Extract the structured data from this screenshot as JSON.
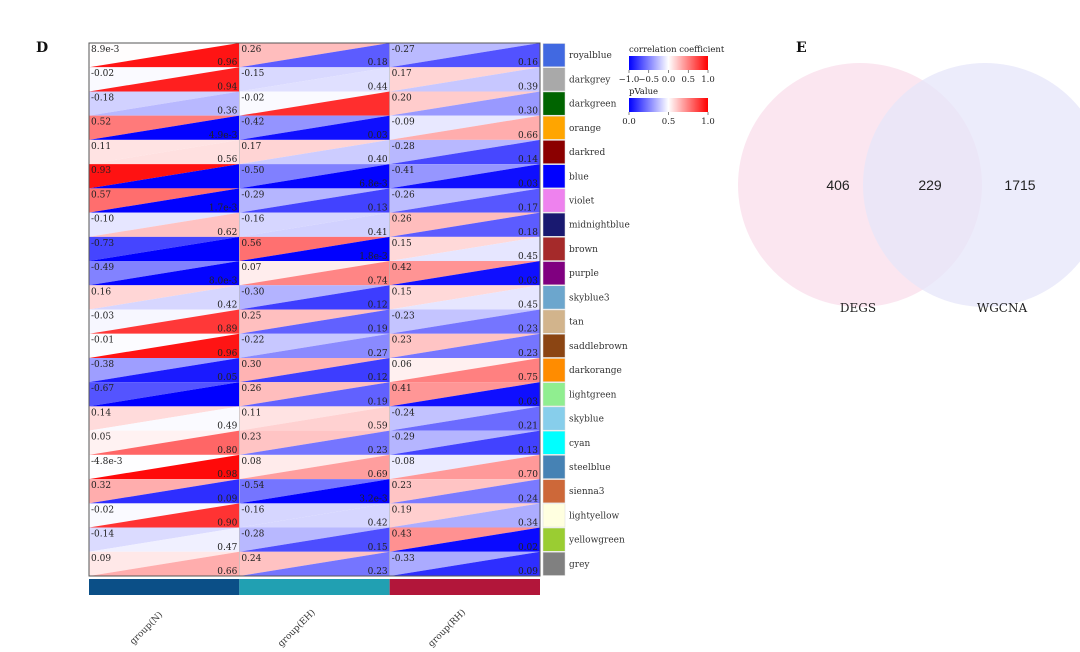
{
  "panel_d_label": "D",
  "panel_e_label": "E",
  "legend": {
    "coef_title": "correlation coefficient",
    "coef_ticks": [
      "−1.0",
      "−0.5",
      "0.0",
      "0.5",
      "1.0"
    ],
    "p_title": "pValue",
    "p_ticks": [
      "0.0",
      "0.5",
      "1.0"
    ]
  },
  "chart_data": [
    {
      "type": "heatmap",
      "title": "",
      "groups": [
        {
          "label": "group(N)",
          "color": "#0b4f87"
        },
        {
          "label": "group(EH)",
          "color": "#21a0b2"
        },
        {
          "label": "group(RH)",
          "color": "#b2163a"
        }
      ],
      "modules": [
        {
          "name": "royalblue",
          "color": "#4169e1"
        },
        {
          "name": "darkgrey",
          "color": "#a9a9a9"
        },
        {
          "name": "darkgreen",
          "color": "#006400"
        },
        {
          "name": "orange",
          "color": "#ffa500"
        },
        {
          "name": "darkred",
          "color": "#8b0000"
        },
        {
          "name": "blue",
          "color": "#0000ff"
        },
        {
          "name": "violet",
          "color": "#ee82ee"
        },
        {
          "name": "midnightblue",
          "color": "#191970"
        },
        {
          "name": "brown",
          "color": "#a52a2a"
        },
        {
          "name": "purple",
          "color": "#800080"
        },
        {
          "name": "skyblue3",
          "color": "#6ca6cd"
        },
        {
          "name": "tan",
          "color": "#d2b48c"
        },
        {
          "name": "saddlebrown",
          "color": "#8b4513"
        },
        {
          "name": "darkorange",
          "color": "#ff8c00"
        },
        {
          "name": "lightgreen",
          "color": "#90ee90"
        },
        {
          "name": "skyblue",
          "color": "#87ceeb"
        },
        {
          "name": "cyan",
          "color": "#00ffff"
        },
        {
          "name": "steelblue",
          "color": "#4682b4"
        },
        {
          "name": "sienna3",
          "color": "#cd6839"
        },
        {
          "name": "lightyellow",
          "color": "#ffffe0"
        },
        {
          "name": "yellowgreen",
          "color": "#9acd32"
        },
        {
          "name": "grey",
          "color": "#808080"
        }
      ],
      "cor_labels": [
        [
          "8.9e-3",
          "0.26",
          "-0.27"
        ],
        [
          "-0.02",
          "-0.15",
          "0.17"
        ],
        [
          "-0.18",
          "-0.02",
          "0.20"
        ],
        [
          "0.52",
          "-0.42",
          "-0.09"
        ],
        [
          "0.11",
          "0.17",
          "-0.28"
        ],
        [
          "0.93",
          "-0.50",
          "-0.41"
        ],
        [
          "0.57",
          "-0.29",
          "-0.26"
        ],
        [
          "-0.10",
          "-0.16",
          "0.26"
        ],
        [
          "-0.73",
          "0.56",
          "0.15"
        ],
        [
          "-0.49",
          "0.07",
          "0.42"
        ],
        [
          "0.16",
          "-0.30",
          "0.15"
        ],
        [
          "-0.03",
          "0.25",
          "-0.23"
        ],
        [
          "-0.01",
          "-0.22",
          "0.23"
        ],
        [
          "-0.38",
          "0.30",
          "0.06"
        ],
        [
          "-0.67",
          "0.26",
          "0.41"
        ],
        [
          "0.14",
          "0.11",
          "-0.24"
        ],
        [
          "0.05",
          "0.23",
          "-0.29"
        ],
        [
          "-4.8e-3",
          "0.08",
          "-0.08"
        ],
        [
          "0.32",
          "-0.54",
          "0.23"
        ],
        [
          "-0.02",
          "-0.16",
          "0.19"
        ],
        [
          "-0.14",
          "-0.28",
          "0.43"
        ],
        [
          "0.09",
          "0.24",
          "-0.33"
        ]
      ],
      "p_labels": [
        [
          "0.96",
          "0.18",
          "0.16"
        ],
        [
          "0.94",
          "0.44",
          "0.39"
        ],
        [
          "0.36",
          "",
          "0.30"
        ],
        [
          "4.9e-3",
          "0.03",
          "0.66"
        ],
        [
          "0.56",
          "0.40",
          "0.14"
        ],
        [
          "",
          "6.8e-3",
          "0.03"
        ],
        [
          "1.7e-3",
          "0.13",
          "0.17"
        ],
        [
          "0.62",
          "0.41",
          "0.18"
        ],
        [
          "",
          "1.8e-3",
          "0.45"
        ],
        [
          "8.0e-3",
          "0.74",
          "0.03"
        ],
        [
          "0.42",
          "0.12",
          "0.45"
        ],
        [
          "0.89",
          "0.19",
          "0.23"
        ],
        [
          "0.96",
          "0.27",
          "0.23"
        ],
        [
          "0.05",
          "0.12",
          "0.75"
        ],
        [
          "",
          "0.19",
          "0.03"
        ],
        [
          "0.49",
          "0.59",
          "0.21"
        ],
        [
          "0.80",
          "0.23",
          "0.13"
        ],
        [
          "0.98",
          "0.69",
          "0.70"
        ],
        [
          "0.09",
          "3.2e-3",
          "0.24"
        ],
        [
          "0.90",
          "0.42",
          "0.34"
        ],
        [
          "0.47",
          "0.15",
          "0.02"
        ],
        [
          "0.66",
          "0.23",
          "0.09"
        ]
      ],
      "cor_values": [
        [
          0.0089,
          0.26,
          -0.27
        ],
        [
          -0.02,
          -0.15,
          0.17
        ],
        [
          -0.18,
          -0.02,
          0.2
        ],
        [
          0.52,
          -0.42,
          -0.09
        ],
        [
          0.11,
          0.17,
          -0.28
        ],
        [
          0.93,
          -0.5,
          -0.41
        ],
        [
          0.57,
          -0.29,
          -0.26
        ],
        [
          -0.1,
          -0.16,
          0.26
        ],
        [
          -0.73,
          0.56,
          0.15
        ],
        [
          -0.49,
          0.07,
          0.42
        ],
        [
          0.16,
          -0.3,
          0.15
        ],
        [
          -0.03,
          0.25,
          -0.23
        ],
        [
          -0.01,
          -0.22,
          0.23
        ],
        [
          -0.38,
          0.3,
          0.06
        ],
        [
          -0.67,
          0.26,
          0.41
        ],
        [
          0.14,
          0.11,
          -0.24
        ],
        [
          0.05,
          0.23,
          -0.29
        ],
        [
          -0.0048,
          0.08,
          -0.08
        ],
        [
          0.32,
          -0.54,
          0.23
        ],
        [
          -0.02,
          -0.16,
          0.19
        ],
        [
          -0.14,
          -0.28,
          0.43
        ],
        [
          0.09,
          0.24,
          -0.33
        ]
      ],
      "p_values": [
        [
          0.96,
          0.18,
          0.16
        ],
        [
          0.94,
          0.44,
          0.39
        ],
        [
          0.36,
          0.91,
          0.3
        ],
        [
          0.0049,
          0.03,
          0.66
        ],
        [
          0.56,
          0.4,
          0.14
        ],
        [
          1e-05,
          0.0068,
          0.03
        ],
        [
          0.0017,
          0.13,
          0.17
        ],
        [
          0.62,
          0.41,
          0.18
        ],
        [
          0.0001,
          0.0018,
          0.45
        ],
        [
          0.008,
          0.74,
          0.03
        ],
        [
          0.42,
          0.12,
          0.45
        ],
        [
          0.89,
          0.19,
          0.23
        ],
        [
          0.96,
          0.27,
          0.23
        ],
        [
          0.05,
          0.12,
          0.75
        ],
        [
          0.0001,
          0.19,
          0.03
        ],
        [
          0.49,
          0.59,
          0.21
        ],
        [
          0.8,
          0.23,
          0.13
        ],
        [
          0.98,
          0.69,
          0.7
        ],
        [
          0.09,
          0.0032,
          0.24
        ],
        [
          0.9,
          0.42,
          0.34
        ],
        [
          0.47,
          0.15,
          0.02
        ],
        [
          0.66,
          0.23,
          0.09
        ]
      ],
      "coef_range": [
        -1,
        1
      ],
      "p_range": [
        0,
        1
      ],
      "coef_colors": [
        "#0000ff",
        "#ffffff",
        "#ff0000"
      ],
      "p_colors": [
        "#0000ff",
        "#ffffff",
        "#ff0000"
      ]
    },
    {
      "type": "venn",
      "sets": [
        {
          "label": "DEGS",
          "only": 406,
          "color": "#fbe3ee"
        },
        {
          "label": "WGCNA",
          "only": 1715,
          "color": "#e6e6fa"
        }
      ],
      "intersection": 229
    }
  ]
}
